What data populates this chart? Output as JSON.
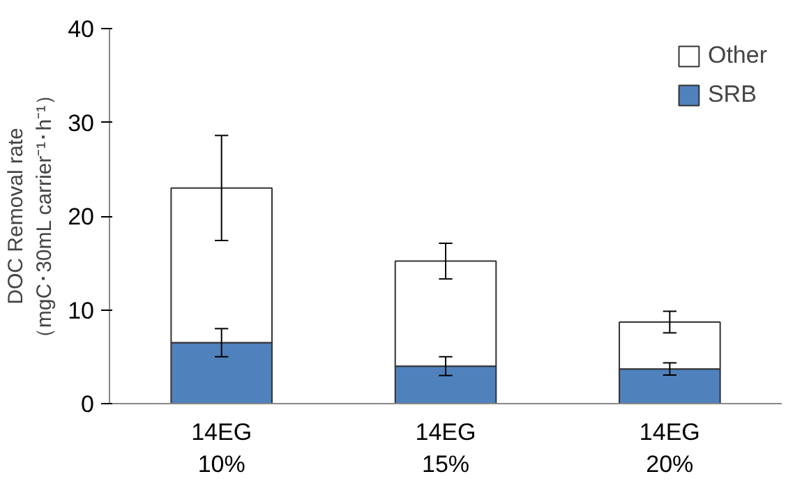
{
  "chart_data": {
    "type": "bar",
    "stacked": true,
    "ylabel": "DOC Removal rate\n（mgC･30mL carrier⁻¹･h⁻¹）",
    "categories": [
      "14EG\n10%",
      "14EG\n15%",
      "14EG\n20%"
    ],
    "series": [
      {
        "name": "SRB",
        "color": "#4f81bd",
        "values": [
          6.5,
          4.0,
          3.7
        ],
        "errors": [
          1.5,
          1.0,
          0.65
        ]
      },
      {
        "name": "Other",
        "color": "#ffffff",
        "values": [
          16.5,
          11.2,
          5.0
        ],
        "errors": [
          5.6,
          1.9,
          1.15
        ]
      }
    ],
    "ylim": [
      0,
      40
    ],
    "yticks": [
      0,
      10,
      20,
      30,
      40
    ],
    "grid": false,
    "legend": "top right"
  }
}
